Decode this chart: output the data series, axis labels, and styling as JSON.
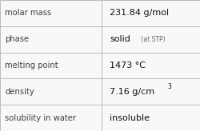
{
  "rows": [
    {
      "label": "molar mass",
      "value": "231.84 g/mol",
      "value_parts": null
    },
    {
      "label": "phase",
      "value": "solid",
      "value_parts": {
        "main": "solid",
        "sub": " (at STP)"
      }
    },
    {
      "label": "melting point",
      "value": "1473 °C",
      "value_parts": null
    },
    {
      "label": "density",
      "value": "7.16 g/cm³",
      "value_parts": {
        "main": "7.16 g/cm",
        "super": "3"
      }
    },
    {
      "label": "solubility in water",
      "value": "insoluble",
      "value_parts": null
    }
  ],
  "col_split": 0.508,
  "bg_color": "#f8f8f8",
  "grid_color": "#bbbbbb",
  "label_color": "#404040",
  "value_color": "#111111",
  "sub_color": "#666666",
  "label_fontsize": 7.2,
  "value_fontsize": 8.0,
  "sub_fontsize": 5.5,
  "super_fontsize": 5.5
}
